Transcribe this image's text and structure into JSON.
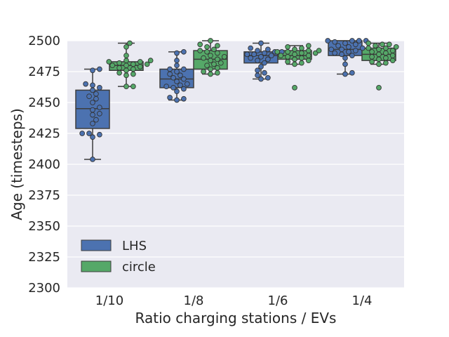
{
  "chart_data": {
    "type": "box",
    "xlabel": "Ratio charging stations / EVs",
    "ylabel": "Age (timesteps)",
    "ylim": [
      2300,
      2500
    ],
    "yticks": [
      2300,
      2325,
      2350,
      2375,
      2400,
      2425,
      2450,
      2475,
      2500
    ],
    "categories": [
      "1/10",
      "1/8",
      "1/6",
      "1/4"
    ],
    "grid": true,
    "legend_position": "lower-left",
    "series": [
      {
        "name": "LHS",
        "color": "#4c72b0",
        "boxes": [
          {
            "whisker_low": 2404,
            "q1": 2429,
            "median": 2445,
            "q3": 2460,
            "whisker_high": 2477,
            "points": [
              2404,
              2422,
              2424,
              2425,
              2425,
              2433,
              2436,
              2440,
              2441,
              2444,
              2446,
              2450,
              2453,
              2455,
              2457,
              2460,
              2462,
              2464,
              2465,
              2476,
              2477
            ]
          },
          {
            "whisker_low": 2452,
            "q1": 2462,
            "median": 2469,
            "q3": 2477,
            "whisker_high": 2491,
            "points": [
              2452,
              2453,
              2454,
              2459,
              2461,
              2462,
              2463,
              2464,
              2465,
              2467,
              2469,
              2470,
              2472,
              2473,
              2475,
              2477,
              2477,
              2480,
              2484,
              2490,
              2491
            ]
          },
          {
            "whisker_low": 2469,
            "q1": 2482,
            "median": 2488,
            "q3": 2491,
            "whisker_high": 2498,
            "points": [
              2469,
              2470,
              2472,
              2474,
              2476,
              2479,
              2482,
              2484,
              2485,
              2486,
              2487,
              2488,
              2489,
              2489,
              2490,
              2491,
              2491,
              2492,
              2493,
              2494,
              2498
            ]
          },
          {
            "whisker_low": 2473,
            "q1": 2488,
            "median": 2493,
            "q3": 2500,
            "whisker_high": 2500,
            "points": [
              2473,
              2474,
              2481,
              2486,
              2488,
              2489,
              2490,
              2491,
              2492,
              2493,
              2493,
              2494,
              2495,
              2496,
              2497,
              2498,
              2499,
              2500,
              2500,
              2500,
              2500
            ]
          }
        ]
      },
      {
        "name": "circle",
        "color": "#55a868",
        "boxes": [
          {
            "whisker_low": 2463,
            "q1": 2476,
            "median": 2480,
            "q3": 2483,
            "whisker_high": 2498,
            "points": [
              2463,
              2463,
              2472,
              2473,
              2474,
              2476,
              2477,
              2478,
              2479,
              2480,
              2480,
              2481,
              2481,
              2482,
              2483,
              2483,
              2484,
              2484,
              2488,
              2495,
              2498
            ]
          },
          {
            "whisker_low": 2473,
            "q1": 2477,
            "median": 2485,
            "q3": 2492,
            "whisker_high": 2500,
            "points": [
              2473,
              2474,
              2475,
              2477,
              2478,
              2480,
              2481,
              2482,
              2484,
              2485,
              2486,
              2487,
              2488,
              2490,
              2491,
              2492,
              2493,
              2495,
              2496,
              2497,
              2500
            ]
          },
          {
            "whisker_low": 2481,
            "q1": 2485,
            "median": 2488,
            "q3": 2492,
            "whisker_high": 2496,
            "points": [
              2462,
              2481,
              2482,
              2483,
              2484,
              2485,
              2486,
              2487,
              2488,
              2488,
              2489,
              2490,
              2490,
              2491,
              2491,
              2492,
              2492,
              2493,
              2494,
              2495,
              2496
            ]
          },
          {
            "whisker_low": 2481,
            "q1": 2484,
            "median": 2489,
            "q3": 2494,
            "whisker_high": 2498,
            "points": [
              2462,
              2481,
              2482,
              2483,
              2484,
              2485,
              2486,
              2487,
              2488,
              2489,
              2490,
              2491,
              2492,
              2493,
              2494,
              2494,
              2495,
              2496,
              2497,
              2497,
              2498
            ]
          }
        ]
      }
    ]
  }
}
